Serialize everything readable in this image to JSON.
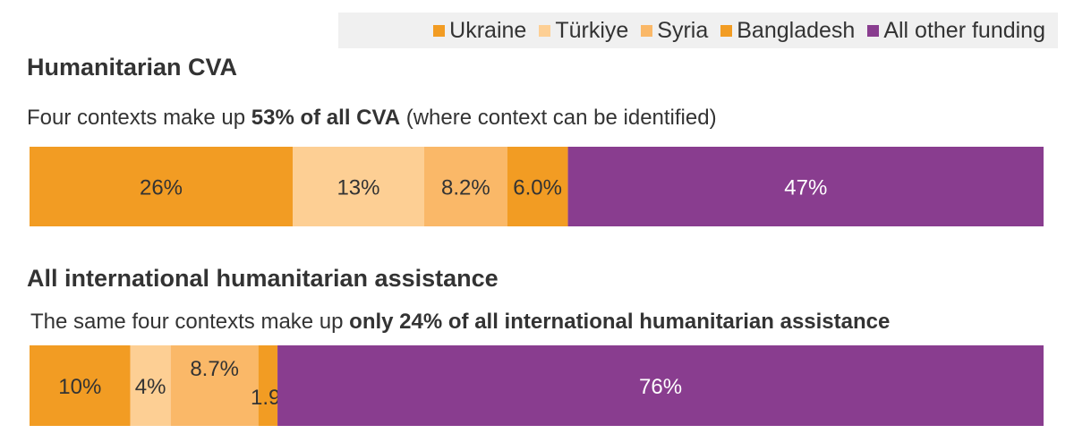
{
  "legend": {
    "items": [
      {
        "label": "Ukraine",
        "color": "#f29c23"
      },
      {
        "label": "Türkiye",
        "color": "#fdcf94"
      },
      {
        "label": "Syria",
        "color": "#fab868"
      },
      {
        "label": "Bangladesh",
        "color": "#f29c23"
      },
      {
        "label": "All other funding",
        "color": "#893d8f"
      }
    ]
  },
  "sections": [
    {
      "title": "Humanitarian CVA",
      "subtitle_pre": "Four contexts make up ",
      "subtitle_bold": "53% of all CVA",
      "subtitle_post": " (where context can be identified)"
    },
    {
      "title": "All international humanitarian assistance",
      "subtitle_pre": "The same four contexts make up ",
      "subtitle_bold": "only 24% of all international humanitarian assistance",
      "subtitle_post": ""
    }
  ],
  "chart_data": [
    {
      "type": "bar",
      "orientation": "horizontal-stacked-100",
      "title": "Humanitarian CVA",
      "categories": [
        "Ukraine",
        "Türkiye",
        "Syria",
        "Bangladesh",
        "All other funding"
      ],
      "values": [
        26,
        13,
        8.2,
        6.0,
        47
      ],
      "data_labels": [
        "26%",
        "13%",
        "8.2%",
        "6.0%",
        "47%"
      ],
      "colors": [
        "#f29c23",
        "#fdcf94",
        "#fab868",
        "#f29c23",
        "#893d8f"
      ],
      "label_colors": [
        "#333333",
        "#333333",
        "#333333",
        "#333333",
        "#ffffff"
      ]
    },
    {
      "type": "bar",
      "orientation": "horizontal-stacked-100",
      "title": "All international humanitarian assistance",
      "categories": [
        "Ukraine",
        "Türkiye",
        "Syria",
        "Bangladesh",
        "All other funding"
      ],
      "values": [
        10,
        4,
        8.7,
        1.9,
        76
      ],
      "data_labels": [
        "10%",
        "4%",
        "8.7%",
        "1.9%",
        "76%"
      ],
      "colors": [
        "#f29c23",
        "#fdcf94",
        "#fab868",
        "#f29c23",
        "#893d8f"
      ],
      "label_colors": [
        "#333333",
        "#333333",
        "#333333",
        "#333333",
        "#ffffff"
      ]
    }
  ]
}
